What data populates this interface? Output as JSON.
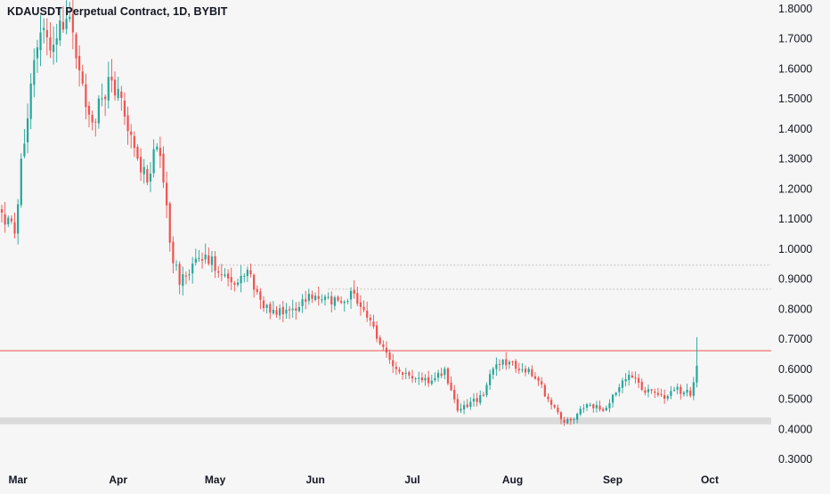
{
  "chart_data": {
    "type": "candlestick",
    "title": "KDAUSDT Perpetual Contract, 1D, BYBIT",
    "ylim": [
      0.28,
      1.83
    ],
    "y_ticks": [
      "1.8000",
      "1.7000",
      "1.6000",
      "1.5000",
      "1.4000",
      "1.3000",
      "1.2000",
      "1.1000",
      "1.0000",
      "0.9000",
      "0.8000",
      "0.7000",
      "0.6000",
      "0.5000",
      "0.4000",
      "0.3000"
    ],
    "x_ticks": [
      "Mar",
      "Apr",
      "May",
      "Jun",
      "Jul",
      "Aug",
      "Sep",
      "Oct"
    ],
    "start_date": "2022-02-24",
    "colors": {
      "up": "#26a69a",
      "down": "#ef5350",
      "resistance": "#ef5350",
      "support_zone": "#d6d6d6",
      "dotted": "#b5b5b5",
      "axis_text": "#131722"
    },
    "annotations": [
      {
        "type": "hline",
        "value": 0.66,
        "style": "solid",
        "color": "#ef5350"
      },
      {
        "type": "zone",
        "from": 0.415,
        "to": 0.438,
        "color": "#d6d6d6"
      },
      {
        "type": "hline",
        "value": 0.945,
        "style": "dotted",
        "from_date": "2022-05-01"
      },
      {
        "type": "hline",
        "value": 0.865,
        "style": "dotted",
        "from_date": "2022-06-05"
      }
    ],
    "price_path": [
      {
        "date": "2022-02-24",
        "close": 1.12
      },
      {
        "date": "2022-02-28",
        "close": 1.05
      },
      {
        "date": "2022-03-02",
        "close": 1.3
      },
      {
        "date": "2022-03-05",
        "close": 1.55
      },
      {
        "date": "2022-03-08",
        "close": 1.72
      },
      {
        "date": "2022-03-11",
        "close": 1.66
      },
      {
        "date": "2022-03-14",
        "close": 1.76
      },
      {
        "date": "2022-03-18",
        "close": 1.72
      },
      {
        "date": "2022-03-21",
        "close": 1.55
      },
      {
        "date": "2022-03-24",
        "close": 1.42
      },
      {
        "date": "2022-03-27",
        "close": 1.5
      },
      {
        "date": "2022-03-30",
        "close": 1.56
      },
      {
        "date": "2022-04-03",
        "close": 1.44
      },
      {
        "date": "2022-04-07",
        "close": 1.3
      },
      {
        "date": "2022-04-10",
        "close": 1.22
      },
      {
        "date": "2022-04-13",
        "close": 1.34
      },
      {
        "date": "2022-04-15",
        "close": 1.22
      },
      {
        "date": "2022-04-17",
        "close": 1.02
      },
      {
        "date": "2022-04-20",
        "close": 0.88
      },
      {
        "date": "2022-04-24",
        "close": 0.95
      },
      {
        "date": "2022-04-28",
        "close": 0.98
      },
      {
        "date": "2022-05-02",
        "close": 0.92
      },
      {
        "date": "2022-05-07",
        "close": 0.88
      },
      {
        "date": "2022-05-11",
        "close": 0.93
      },
      {
        "date": "2022-05-15",
        "close": 0.83
      },
      {
        "date": "2022-05-20",
        "close": 0.78
      },
      {
        "date": "2022-05-25",
        "close": 0.8
      },
      {
        "date": "2022-05-30",
        "close": 0.85
      },
      {
        "date": "2022-06-04",
        "close": 0.84
      },
      {
        "date": "2022-06-09",
        "close": 0.82
      },
      {
        "date": "2022-06-13",
        "close": 0.85
      },
      {
        "date": "2022-06-17",
        "close": 0.77
      },
      {
        "date": "2022-06-20",
        "close": 0.7
      },
      {
        "date": "2022-06-24",
        "close": 0.63
      },
      {
        "date": "2022-06-28",
        "close": 0.58
      },
      {
        "date": "2022-07-03",
        "close": 0.57
      },
      {
        "date": "2022-07-07",
        "close": 0.56
      },
      {
        "date": "2022-07-11",
        "close": 0.6
      },
      {
        "date": "2022-07-15",
        "close": 0.46
      },
      {
        "date": "2022-07-19",
        "close": 0.49
      },
      {
        "date": "2022-07-23",
        "close": 0.51
      },
      {
        "date": "2022-07-26",
        "close": 0.6
      },
      {
        "date": "2022-07-29",
        "close": 0.63
      },
      {
        "date": "2022-08-02",
        "close": 0.6
      },
      {
        "date": "2022-08-06",
        "close": 0.6
      },
      {
        "date": "2022-08-09",
        "close": 0.56
      },
      {
        "date": "2022-08-13",
        "close": 0.48
      },
      {
        "date": "2022-08-17",
        "close": 0.42
      },
      {
        "date": "2022-08-21",
        "close": 0.45
      },
      {
        "date": "2022-08-25",
        "close": 0.48
      },
      {
        "date": "2022-08-29",
        "close": 0.46
      },
      {
        "date": "2022-09-02",
        "close": 0.52
      },
      {
        "date": "2022-09-06",
        "close": 0.58
      },
      {
        "date": "2022-09-10",
        "close": 0.53
      },
      {
        "date": "2022-09-14",
        "close": 0.52
      },
      {
        "date": "2022-09-17",
        "close": 0.5
      },
      {
        "date": "2022-09-20",
        "close": 0.53
      },
      {
        "date": "2022-09-24",
        "close": 0.53
      },
      {
        "date": "2022-09-25",
        "close": 0.51
      },
      {
        "date": "2022-09-27",
        "close": 0.61
      }
    ]
  }
}
